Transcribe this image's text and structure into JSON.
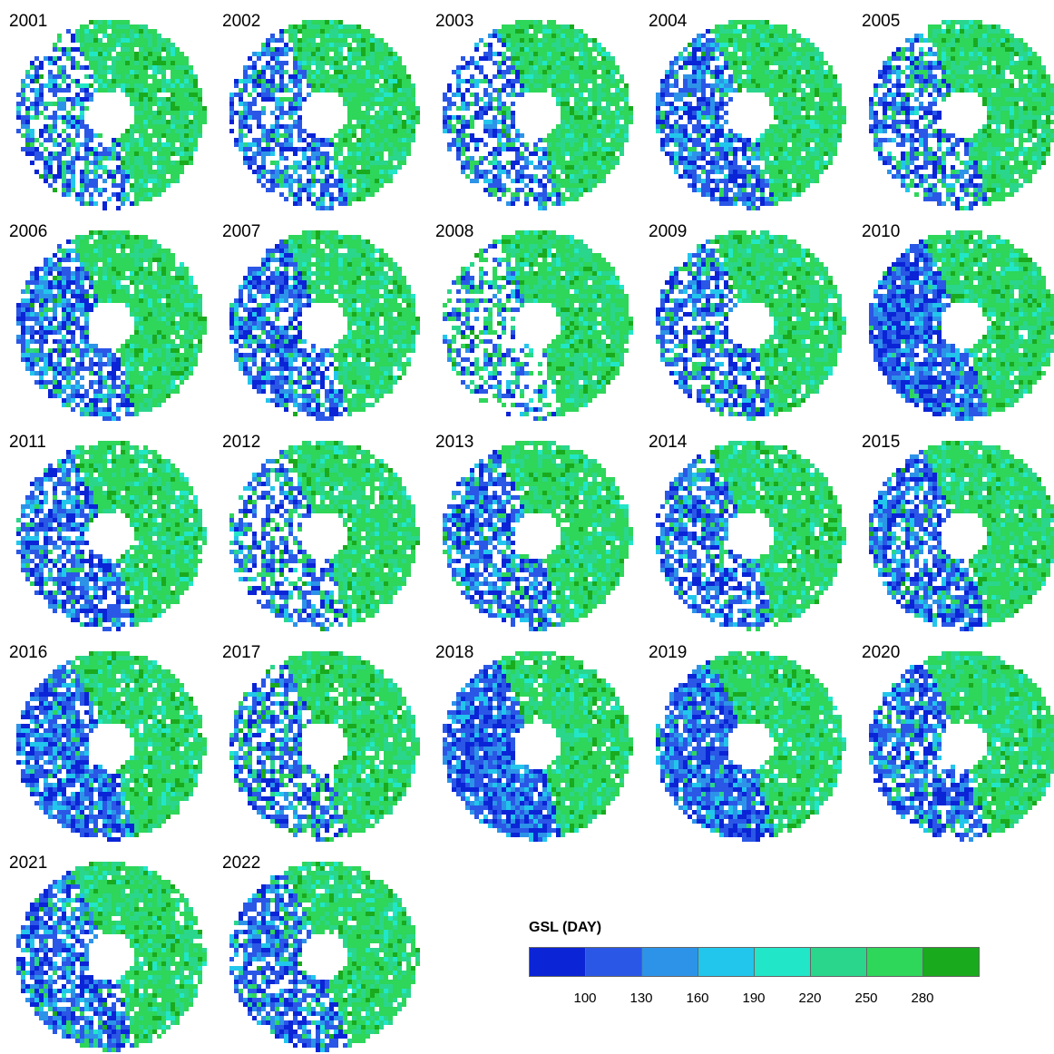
{
  "panels": [
    {
      "year": "2001",
      "coverage": 0.62,
      "blue_share": 0.25
    },
    {
      "year": "2002",
      "coverage": 0.74,
      "blue_share": 0.4
    },
    {
      "year": "2003",
      "coverage": 0.64,
      "blue_share": 0.35
    },
    {
      "year": "2004",
      "coverage": 0.78,
      "blue_share": 0.45
    },
    {
      "year": "2005",
      "coverage": 0.68,
      "blue_share": 0.3
    },
    {
      "year": "2006",
      "coverage": 0.78,
      "blue_share": 0.45
    },
    {
      "year": "2007",
      "coverage": 0.8,
      "blue_share": 0.45
    },
    {
      "year": "2008",
      "coverage": 0.52,
      "blue_share": 0.05
    },
    {
      "year": "2009",
      "coverage": 0.72,
      "blue_share": 0.35
    },
    {
      "year": "2010",
      "coverage": 0.92,
      "blue_share": 0.5
    },
    {
      "year": "2011",
      "coverage": 0.78,
      "blue_share": 0.45
    },
    {
      "year": "2012",
      "coverage": 0.6,
      "blue_share": 0.25
    },
    {
      "year": "2013",
      "coverage": 0.78,
      "blue_share": 0.4
    },
    {
      "year": "2014",
      "coverage": 0.76,
      "blue_share": 0.4
    },
    {
      "year": "2015",
      "coverage": 0.8,
      "blue_share": 0.42
    },
    {
      "year": "2016",
      "coverage": 0.86,
      "blue_share": 0.5
    },
    {
      "year": "2017",
      "coverage": 0.7,
      "blue_share": 0.3
    },
    {
      "year": "2018",
      "coverage": 0.92,
      "blue_share": 0.55
    },
    {
      "year": "2019",
      "coverage": 0.9,
      "blue_share": 0.5
    },
    {
      "year": "2020",
      "coverage": 0.82,
      "blue_share": 0.42
    },
    {
      "year": "2021",
      "coverage": 0.8,
      "blue_share": 0.42
    },
    {
      "year": "2022",
      "coverage": 0.8,
      "blue_share": 0.42
    }
  ],
  "legend": {
    "title": "GSL (DAY)",
    "colors": [
      "#0a24d6",
      "#2a57e6",
      "#2d93e8",
      "#22c6ec",
      "#22e6c8",
      "#2ad68c",
      "#2ed65a",
      "#1aaa1e"
    ],
    "ticks": [
      "100",
      "130",
      "160",
      "190",
      "220",
      "250",
      "280"
    ]
  }
}
